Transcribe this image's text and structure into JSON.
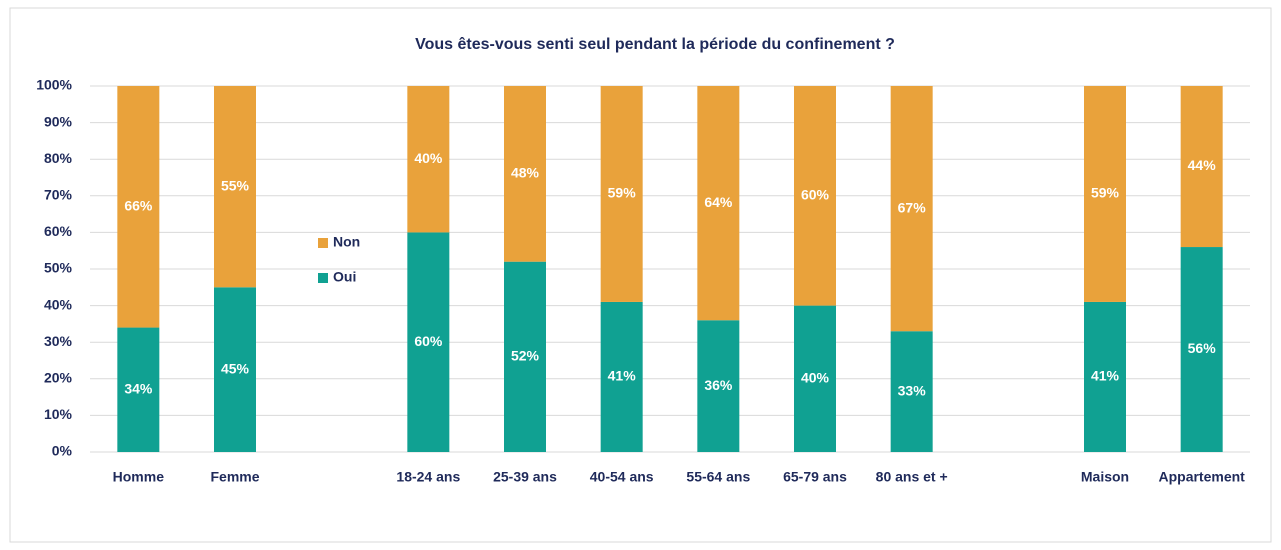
{
  "chart_data": {
    "type": "stacked_bar",
    "title": "Vous êtes-vous senti seul pendant la période du confinement ?",
    "categories": [
      "Homme",
      "Femme",
      null,
      "18-24 ans",
      "25-39 ans",
      "40-54 ans",
      "55-64 ans",
      "65-79 ans",
      "80 ans et +",
      null,
      "Maison",
      "Appartement"
    ],
    "series": [
      {
        "name": "Oui",
        "color": "#10a192",
        "values": [
          34,
          45,
          null,
          60,
          52,
          41,
          36,
          40,
          33,
          null,
          41,
          56
        ],
        "value_labels": [
          "34%",
          "45%",
          null,
          "60%",
          "52%",
          "41%",
          "36%",
          "40%",
          "33%",
          null,
          "41%",
          "56%"
        ]
      },
      {
        "name": "Non",
        "color": "#e9a23b",
        "values": [
          66,
          55,
          null,
          40,
          48,
          59,
          64,
          60,
          67,
          null,
          59,
          44
        ],
        "value_labels": [
          "66%",
          "55%",
          null,
          "40%",
          "48%",
          "59%",
          "64%",
          "60%",
          "67%",
          null,
          "59%",
          "44%"
        ]
      }
    ],
    "ylim": [
      0,
      100
    ],
    "yticks": [
      {
        "value": 0,
        "label": "0%"
      },
      {
        "value": 10,
        "label": "10%"
      },
      {
        "value": 20,
        "label": "20%"
      },
      {
        "value": 30,
        "label": "30%"
      },
      {
        "value": 40,
        "label": "40%"
      },
      {
        "value": 50,
        "label": "50%"
      },
      {
        "value": 60,
        "label": "60%"
      },
      {
        "value": 70,
        "label": "70%"
      },
      {
        "value": 80,
        "label": "80%"
      },
      {
        "value": 90,
        "label": "90%"
      },
      {
        "value": 100,
        "label": "100%"
      }
    ],
    "grid": true
  }
}
